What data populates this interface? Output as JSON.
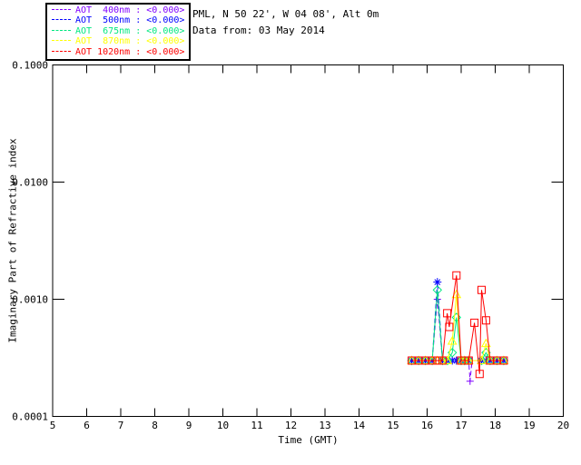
{
  "header": {
    "location_line": "PML, N 50 22', W 04 08', Alt 0m",
    "data_line": "Data from: 03 May 2014"
  },
  "legend": {
    "entries": [
      {
        "label": "AOT  400nm : <0.000>",
        "color": "#7f00ff"
      },
      {
        "label": "AOT  500nm : <0.000>",
        "color": "#0000ff"
      },
      {
        "label": "AOT  675nm : <0.000>",
        "color": "#00e87f"
      },
      {
        "label": "AOT  870nm : <0.000>",
        "color": "#ffff00"
      },
      {
        "label": "AOT 1020nm : <0.000>",
        "color": "#ff0000"
      }
    ]
  },
  "chart_data": {
    "type": "line",
    "title": "",
    "xlabel": "Time (GMT)",
    "ylabel": "Imaginary Part of Refractive index",
    "x_range": [
      5,
      20
    ],
    "y_range": [
      0.0001,
      0.1
    ],
    "y_scale": "log",
    "grid": false,
    "legend_position": "top-left",
    "xticks": [
      5,
      6,
      7,
      8,
      9,
      10,
      11,
      12,
      13,
      14,
      15,
      16,
      17,
      18,
      19,
      20
    ],
    "yticks": [
      {
        "value": 0.1,
        "label": "0.1000"
      },
      {
        "value": 0.01,
        "label": "0.0100"
      },
      {
        "value": 0.001,
        "label": "0.0010"
      },
      {
        "value": 0.0001,
        "label": "0.0001"
      }
    ],
    "series": [
      {
        "name": "AOT 400nm",
        "wavelength_nm": 400,
        "color": "#7f00ff",
        "marker": "plus",
        "linestyle": "dashed",
        "points": [
          [
            15.55,
            0.0003
          ],
          [
            15.75,
            0.0003
          ],
          [
            15.95,
            0.0003
          ],
          [
            16.15,
            0.0003
          ],
          [
            16.3,
            0.001
          ],
          [
            16.45,
            0.0003
          ],
          [
            16.6,
            0.0003
          ],
          [
            16.74,
            0.0003
          ],
          [
            16.86,
            0.0003
          ],
          [
            17.0,
            0.0003
          ],
          [
            17.1,
            0.0003
          ],
          [
            17.22,
            0.0003
          ],
          [
            17.26,
            0.0002
          ],
          [
            17.32,
            0.0003
          ],
          [
            17.6,
            0.0003
          ],
          [
            17.73,
            0.0003
          ],
          [
            17.85,
            0.0003
          ],
          [
            18.05,
            0.0003
          ],
          [
            18.25,
            0.0003
          ]
        ]
      },
      {
        "name": "AOT 500nm",
        "wavelength_nm": 500,
        "color": "#0000ff",
        "marker": "asterisk",
        "linestyle": "dashed",
        "points": [
          [
            15.55,
            0.0003
          ],
          [
            15.75,
            0.0003
          ],
          [
            15.95,
            0.0003
          ],
          [
            16.15,
            0.0003
          ],
          [
            16.3,
            0.0014
          ],
          [
            16.45,
            0.0003
          ],
          [
            16.6,
            0.0003
          ],
          [
            16.74,
            0.0003
          ],
          [
            16.86,
            0.0003
          ],
          [
            17.0,
            0.0003
          ],
          [
            17.1,
            0.0003
          ],
          [
            17.22,
            0.0003
          ],
          [
            17.6,
            0.0003
          ],
          [
            17.73,
            0.0003
          ],
          [
            17.85,
            0.0003
          ],
          [
            18.05,
            0.0003
          ],
          [
            18.25,
            0.0003
          ]
        ]
      },
      {
        "name": "AOT 675nm",
        "wavelength_nm": 675,
        "color": "#00e87f",
        "marker": "diamond",
        "linestyle": "solid",
        "points": [
          [
            15.55,
            0.0003
          ],
          [
            15.75,
            0.0003
          ],
          [
            15.95,
            0.0003
          ],
          [
            16.15,
            0.0003
          ],
          [
            16.3,
            0.0012
          ],
          [
            16.45,
            0.0003
          ],
          [
            16.6,
            0.0003
          ],
          [
            16.74,
            0.00035
          ],
          [
            16.86,
            0.0007
          ],
          [
            17.0,
            0.0003
          ],
          [
            17.1,
            0.0003
          ],
          [
            17.22,
            0.0003
          ],
          [
            17.6,
            0.0003
          ],
          [
            17.73,
            0.00035
          ],
          [
            17.85,
            0.0003
          ],
          [
            18.05,
            0.0003
          ],
          [
            18.25,
            0.0003
          ]
        ]
      },
      {
        "name": "AOT 870nm",
        "wavelength_nm": 870,
        "color": "#ffff00",
        "marker": "triangle",
        "linestyle": "solid",
        "points": [
          [
            15.55,
            0.0003
          ],
          [
            15.75,
            0.0003
          ],
          [
            15.95,
            0.0003
          ],
          [
            16.15,
            0.0003
          ],
          [
            16.3,
            0.0003
          ],
          [
            16.45,
            0.0003
          ],
          [
            16.6,
            0.0003
          ],
          [
            16.74,
            0.00044
          ],
          [
            16.86,
            0.0011
          ],
          [
            17.0,
            0.0003
          ],
          [
            17.1,
            0.0003
          ],
          [
            17.22,
            0.0003
          ],
          [
            17.6,
            0.0003
          ],
          [
            17.73,
            0.00042
          ],
          [
            17.85,
            0.0003
          ],
          [
            18.05,
            0.0003
          ],
          [
            18.25,
            0.0003
          ]
        ]
      },
      {
        "name": "AOT 1020nm",
        "wavelength_nm": 1020,
        "color": "#ff0000",
        "marker": "square",
        "linestyle": "solid",
        "points": [
          [
            15.55,
            0.0003
          ],
          [
            15.75,
            0.0003
          ],
          [
            15.95,
            0.0003
          ],
          [
            16.15,
            0.0003
          ],
          [
            16.3,
            0.0003
          ],
          [
            16.45,
            0.0003
          ],
          [
            16.59,
            0.00076
          ],
          [
            16.65,
            0.00058
          ],
          [
            16.86,
            0.0016
          ],
          [
            17.0,
            0.0003
          ],
          [
            17.1,
            0.0003
          ],
          [
            17.22,
            0.0003
          ],
          [
            17.39,
            0.00063
          ],
          [
            17.54,
            0.00023
          ],
          [
            17.6,
            0.0012
          ],
          [
            17.73,
            0.00066
          ],
          [
            17.85,
            0.0003
          ],
          [
            18.05,
            0.0003
          ],
          [
            18.25,
            0.0003
          ]
        ]
      }
    ]
  }
}
